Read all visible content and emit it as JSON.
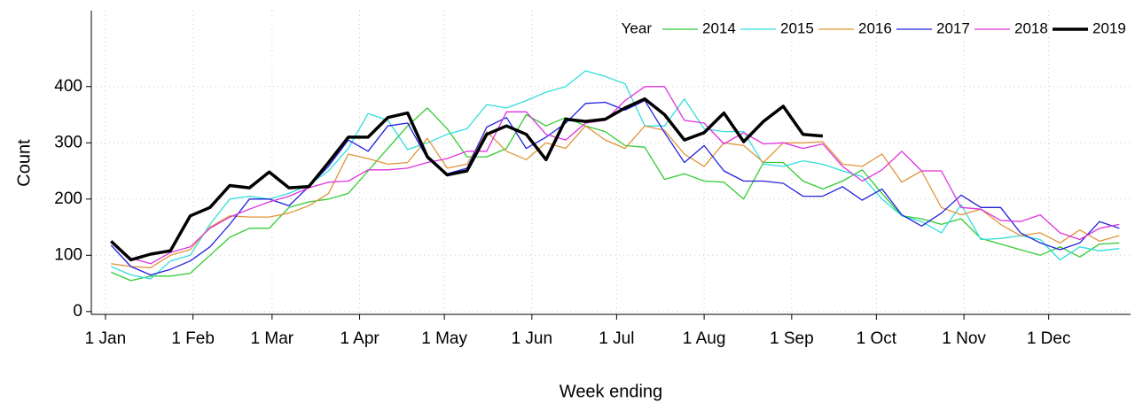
{
  "chart_data": {
    "type": "line",
    "x_label": "Week ending",
    "y_label": "Count",
    "legend_title": "Year",
    "legend": "top-right",
    "grid": true,
    "x": [
      3,
      10,
      17,
      24,
      31,
      38,
      45,
      52,
      59,
      66,
      73,
      80,
      87,
      94,
      101,
      108,
      115,
      122,
      129,
      136,
      143,
      150,
      157,
      164,
      171,
      178,
      185,
      192,
      199,
      206,
      213,
      220,
      227,
      234,
      241,
      248,
      255,
      262,
      269,
      276,
      283,
      290,
      297,
      304,
      311,
      318,
      325,
      332,
      339,
      346,
      353,
      360
    ],
    "xlim": [
      -4,
      364
    ],
    "xticks": [
      {
        "value": 1,
        "label": "1 Jan"
      },
      {
        "value": 32,
        "label": "1 Feb"
      },
      {
        "value": 60,
        "label": "1 Mar"
      },
      {
        "value": 91,
        "label": "1 Apr"
      },
      {
        "value": 121,
        "label": "1 May"
      },
      {
        "value": 152,
        "label": "1 Jun"
      },
      {
        "value": 182,
        "label": "1 Jul"
      },
      {
        "value": 213,
        "label": "1 Aug"
      },
      {
        "value": 244,
        "label": "1 Sep"
      },
      {
        "value": 274,
        "label": "1 Oct"
      },
      {
        "value": 305,
        "label": "1 Nov"
      },
      {
        "value": 335,
        "label": "1 Dec"
      }
    ],
    "ylim": [
      -5,
      535
    ],
    "yticks": [
      0,
      100,
      200,
      300,
      400
    ],
    "series": [
      {
        "name": "2014",
        "color": "#33cc33",
        "linewidth": 1.3,
        "values": [
          70,
          55,
          63,
          63,
          68,
          100,
          132,
          148,
          148,
          185,
          195,
          200,
          210,
          250,
          290,
          330,
          362,
          325,
          275,
          275,
          290,
          350,
          330,
          345,
          330,
          320,
          295,
          292,
          235,
          245,
          232,
          230,
          200,
          265,
          265,
          232,
          218,
          232,
          252,
          210,
          170,
          165,
          155,
          165,
          130,
          120,
          110,
          100,
          115,
          97,
          120,
          122
        ]
      },
      {
        "name": "2015",
        "color": "#33dddd",
        "linewidth": 1.3,
        "values": [
          80,
          65,
          58,
          90,
          100,
          155,
          200,
          205,
          200,
          210,
          225,
          250,
          290,
          352,
          340,
          288,
          300,
          315,
          325,
          368,
          362,
          375,
          390,
          400,
          428,
          418,
          405,
          330,
          330,
          378,
          325,
          320,
          320,
          262,
          258,
          268,
          262,
          250,
          240,
          200,
          170,
          160,
          140,
          190,
          128,
          130,
          135,
          128,
          92,
          115,
          108,
          112
        ]
      },
      {
        "name": "2016",
        "color": "#e0953a",
        "linewidth": 1.3,
        "values": [
          85,
          80,
          78,
          100,
          110,
          150,
          170,
          168,
          168,
          175,
          188,
          210,
          280,
          272,
          262,
          265,
          308,
          255,
          262,
          320,
          285,
          270,
          300,
          290,
          330,
          305,
          290,
          330,
          322,
          280,
          258,
          300,
          295,
          265,
          300,
          300,
          302,
          262,
          258,
          280,
          230,
          250,
          185,
          172,
          182,
          155,
          135,
          140,
          122,
          145,
          125,
          135
        ]
      },
      {
        "name": "2017",
        "color": "#2222dd",
        "linewidth": 1.3,
        "values": [
          118,
          80,
          65,
          75,
          90,
          115,
          155,
          200,
          200,
          188,
          222,
          258,
          305,
          285,
          330,
          335,
          272,
          245,
          255,
          328,
          345,
          290,
          310,
          335,
          370,
          372,
          358,
          375,
          318,
          265,
          295,
          250,
          232,
          232,
          228,
          205,
          205,
          222,
          198,
          218,
          172,
          152,
          175,
          207,
          185,
          185,
          140,
          122,
          110,
          122,
          160,
          148
        ]
      },
      {
        "name": "2018",
        "color": "#dd33dd",
        "linewidth": 1.3,
        "values": [
          125,
          95,
          85,
          105,
          115,
          148,
          168,
          182,
          195,
          205,
          220,
          230,
          232,
          252,
          252,
          255,
          265,
          272,
          285,
          285,
          355,
          355,
          315,
          305,
          335,
          340,
          375,
          400,
          400,
          340,
          335,
          298,
          318,
          298,
          300,
          290,
          298,
          258,
          232,
          252,
          285,
          250,
          250,
          185,
          182,
          162,
          160,
          172,
          140,
          128,
          148,
          155
        ]
      },
      {
        "name": "2019",
        "color": "#000000",
        "linewidth": 3.5,
        "values": [
          125,
          92,
          102,
          108,
          170,
          185,
          224,
          220,
          248,
          220,
          222,
          265,
          310,
          310,
          345,
          353,
          275,
          243,
          250,
          315,
          330,
          315,
          270,
          342,
          338,
          342,
          362,
          378,
          350,
          305,
          318,
          353,
          302,
          338,
          365,
          315,
          312,
          null,
          null,
          null,
          null,
          null,
          null,
          null,
          null,
          null,
          null,
          null,
          null,
          null,
          null,
          null
        ]
      }
    ]
  }
}
